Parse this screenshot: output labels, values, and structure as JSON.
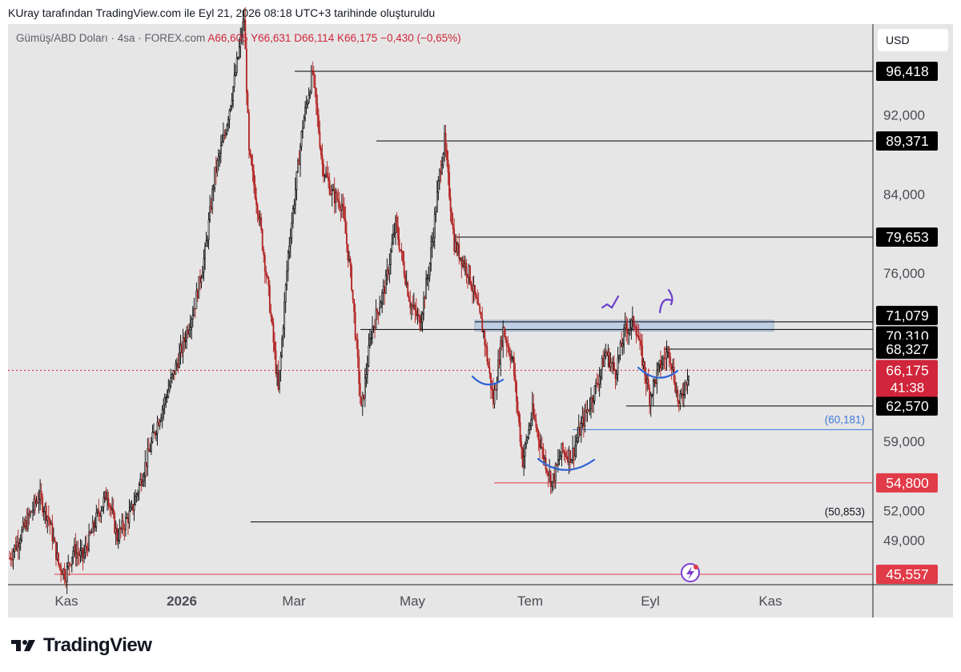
{
  "header": {
    "title": "KUray tarafından TradingView.com ile Eyl 21, 2026 08:18 UTC+3 tarihinde oluşturuldu"
  },
  "legend": {
    "symbol": "Gümüş/ABD Doları · 4sa · FOREX.com",
    "open": "A66,605",
    "high": "Y66,631",
    "low": "D66,114",
    "close": "K66,175",
    "change": "−0,430 (−0,65%)"
  },
  "currency": "USD",
  "brand": "TradingView",
  "colors": {
    "background": "#e6e6e6",
    "candle_up": "#000000",
    "candle_down": "#b22222",
    "red_level": "#e23b48",
    "blue_level": "#3a78d8",
    "blue_arc": "#2e63d6",
    "purple_mark": "#6a3fcf",
    "zone_fill": "#b8cce4"
  },
  "chart_data": {
    "type": "candlestick",
    "symbol": "Gümüş/ABD Doları",
    "timeframe": "4sa",
    "ylim": [
      42.6,
      101.8
    ],
    "y_ticks": [
      "49,000",
      "52,000",
      "59,000",
      "76,000",
      "84,000",
      "92,000"
    ],
    "y_tick_values": [
      49.0,
      52.0,
      59.0,
      76.0,
      84.0,
      92.0
    ],
    "x_ticks": [
      "Kas",
      "2026",
      "Mar",
      "May",
      "Tem",
      "Eyl",
      "Kas"
    ],
    "price_path": [
      [
        0,
        47.2
      ],
      [
        3,
        50.3
      ],
      [
        6,
        53.5
      ],
      [
        8,
        51.2
      ],
      [
        10,
        46.6
      ],
      [
        11.5,
        45.56
      ],
      [
        13,
        48.0
      ],
      [
        15,
        47.3
      ],
      [
        18,
        51.5
      ],
      [
        20,
        53.8
      ],
      [
        22,
        49.3
      ],
      [
        25,
        52.0
      ],
      [
        28,
        57.0
      ],
      [
        30,
        60.5
      ],
      [
        33,
        65.0
      ],
      [
        35,
        68.0
      ],
      [
        38,
        73.0
      ],
      [
        40,
        78.0
      ],
      [
        42,
        86.0
      ],
      [
        44,
        90.0
      ],
      [
        46,
        95.5
      ],
      [
        48,
        101.8
      ],
      [
        49,
        88.0
      ],
      [
        51,
        82.0
      ],
      [
        53,
        74.0
      ],
      [
        55,
        64.0
      ],
      [
        57,
        78.0
      ],
      [
        60,
        91.0
      ],
      [
        62,
        96.4
      ],
      [
        64,
        87.0
      ],
      [
        66,
        84.0
      ],
      [
        68,
        83.0
      ],
      [
        70,
        75.0
      ],
      [
        72,
        62.0
      ],
      [
        74,
        70.0
      ],
      [
        77,
        75.0
      ],
      [
        79,
        81.0
      ],
      [
        82,
        73.0
      ],
      [
        84,
        71.0
      ],
      [
        86,
        77.0
      ],
      [
        88,
        86.0
      ],
      [
        89,
        89.37
      ],
      [
        91,
        79.0
      ],
      [
        94,
        76.0
      ],
      [
        97,
        70.0
      ],
      [
        99,
        63.0
      ],
      [
        101,
        70.3
      ],
      [
        103,
        67.0
      ],
      [
        105,
        57.0
      ],
      [
        107,
        62.0
      ],
      [
        109,
        58.0
      ],
      [
        111,
        54.8
      ],
      [
        113,
        58.0
      ],
      [
        115,
        57.5
      ],
      [
        117,
        60.5
      ],
      [
        120,
        64.5
      ],
      [
        122,
        68.0
      ],
      [
        124,
        66.0
      ],
      [
        126,
        70.3
      ],
      [
        128,
        71.08
      ],
      [
        130,
        66.0
      ],
      [
        131,
        63.5
      ],
      [
        133,
        66.5
      ],
      [
        135,
        68.3
      ],
      [
        137,
        62.57
      ],
      [
        139,
        66.175
      ]
    ],
    "horizontal_levels": [
      {
        "label": "96,418",
        "value": 96.418,
        "kind": "resistance"
      },
      {
        "label": "89,371",
        "value": 89.371,
        "kind": "resistance"
      },
      {
        "label": "79,653",
        "value": 79.653,
        "kind": "resistance"
      },
      {
        "label": "71,079",
        "value": 71.079,
        "kind": "resistance"
      },
      {
        "label": "70,310",
        "value": 70.31,
        "kind": "resistance"
      },
      {
        "label": "68,327",
        "value": 68.327,
        "kind": "resistance"
      },
      {
        "label": "62,570",
        "value": 62.57,
        "kind": "support"
      },
      {
        "label": "(60,181)",
        "value": 60.181,
        "kind": "blue"
      },
      {
        "label": "54,800",
        "value": 54.8,
        "kind": "red"
      },
      {
        "label": "(50,853)",
        "value": 50.853,
        "kind": "plain"
      },
      {
        "label": "45,557",
        "value": 45.557,
        "kind": "red"
      }
    ],
    "current_price": {
      "label": "66,175",
      "value": 66.175,
      "countdown": "41:38"
    },
    "zone": {
      "low": 70.31,
      "high": 71.079
    }
  }
}
